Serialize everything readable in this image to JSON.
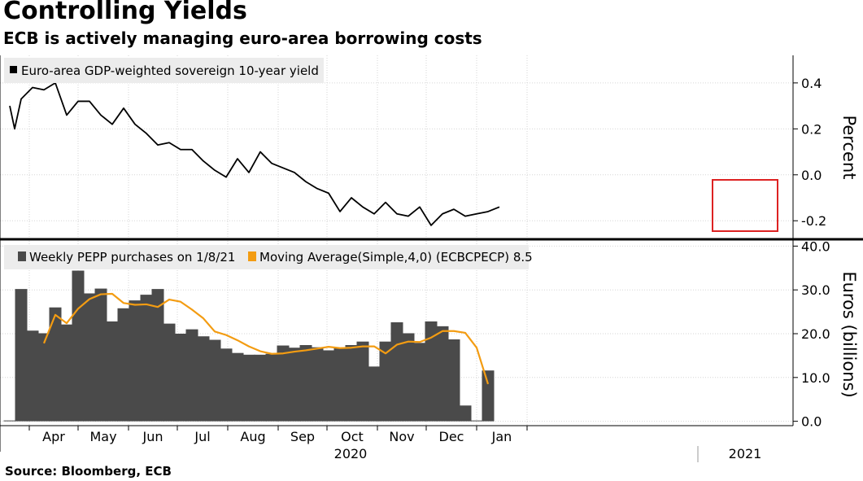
{
  "title": "Controlling Yields",
  "subtitle": "ECB is actively managing euro-area borrowing costs",
  "source": "Source: Bloomberg, ECB",
  "x_axis": {
    "months": [
      "Apr",
      "May",
      "Jun",
      "Jul",
      "Aug",
      "Sep",
      "Oct",
      "Nov",
      "Dec",
      "Jan"
    ],
    "year_2020": "2020",
    "year_2021": "2021"
  },
  "chart_data": [
    {
      "type": "line",
      "legend": "Euro-area GDP-weighted sovereign 10-year yield",
      "ylabel": "Percent",
      "ylim": [
        -0.27,
        0.52
      ],
      "yticks": [
        0.4,
        0.2,
        0.0,
        -0.2
      ],
      "ytick_labels": [
        "0.4",
        "0.2",
        "0.0",
        "-0.2"
      ],
      "grid": true,
      "legend_position": "top-left",
      "color": "#000000",
      "highlight_box": "most recent readings",
      "highlight_color": "#dd2222",
      "series": [
        {
          "x": [
            "2020-03-20",
            "2020-03-23",
            "2020-03-27",
            "2020-04-03",
            "2020-04-10",
            "2020-04-17",
            "2020-04-24",
            "2020-05-01",
            "2020-05-08",
            "2020-05-15",
            "2020-05-22",
            "2020-05-29",
            "2020-06-05",
            "2020-06-12",
            "2020-06-19",
            "2020-06-26",
            "2020-07-03",
            "2020-07-10",
            "2020-07-17",
            "2020-07-24",
            "2020-07-31",
            "2020-08-07",
            "2020-08-14",
            "2020-08-21",
            "2020-08-28",
            "2020-09-04",
            "2020-09-11",
            "2020-09-18",
            "2020-09-25",
            "2020-10-02",
            "2020-10-09",
            "2020-10-16",
            "2020-10-23",
            "2020-10-30",
            "2020-11-06",
            "2020-11-13",
            "2020-11-20",
            "2020-11-27",
            "2020-12-04",
            "2020-12-11",
            "2020-12-18",
            "2020-12-25",
            "2021-01-01",
            "2021-01-08",
            "2021-01-15"
          ],
          "values": [
            0.3,
            0.2,
            0.33,
            0.38,
            0.37,
            0.4,
            0.26,
            0.32,
            0.32,
            0.26,
            0.22,
            0.29,
            0.22,
            0.18,
            0.13,
            0.14,
            0.11,
            0.11,
            0.06,
            0.02,
            -0.01,
            0.07,
            0.01,
            0.1,
            0.05,
            0.03,
            0.01,
            -0.03,
            -0.06,
            -0.08,
            -0.16,
            -0.1,
            -0.14,
            -0.17,
            -0.12,
            -0.17,
            -0.18,
            -0.14,
            -0.22,
            -0.17,
            -0.15,
            -0.18,
            -0.17,
            -0.16,
            -0.14
          ]
        }
      ]
    },
    {
      "type": "bar",
      "legend": "Weekly PEPP purchases on 1/8/21",
      "ylabel": "Euros (billions)",
      "ylim": [
        -1,
        41
      ],
      "yticks": [
        40,
        30,
        20,
        10,
        0
      ],
      "ytick_labels": [
        "40.0",
        "30.0",
        "20.0",
        "10.0",
        "0.0"
      ],
      "grid": true,
      "legend_position": "top-left",
      "series": [
        {
          "name": "Weekly PEPP purchases on 1/8/21",
          "type": "bar",
          "color": "#4a4a4a",
          "x": [
            "2020-03-20",
            "2020-03-27",
            "2020-04-03",
            "2020-04-10",
            "2020-04-17",
            "2020-04-24",
            "2020-05-01",
            "2020-05-08",
            "2020-05-15",
            "2020-05-22",
            "2020-05-29",
            "2020-06-05",
            "2020-06-12",
            "2020-06-19",
            "2020-06-26",
            "2020-07-03",
            "2020-07-10",
            "2020-07-17",
            "2020-07-24",
            "2020-07-31",
            "2020-08-07",
            "2020-08-14",
            "2020-08-21",
            "2020-08-28",
            "2020-09-04",
            "2020-09-11",
            "2020-09-18",
            "2020-09-25",
            "2020-10-02",
            "2020-10-09",
            "2020-10-16",
            "2020-10-23",
            "2020-10-30",
            "2020-11-06",
            "2020-11-13",
            "2020-11-20",
            "2020-11-27",
            "2020-12-04",
            "2020-12-11",
            "2020-12-18",
            "2020-12-25",
            "2021-01-01",
            "2021-01-08"
          ],
          "values": [
            0.0,
            30.2,
            20.7,
            20.1,
            26.0,
            22.1,
            34.4,
            29.2,
            30.3,
            22.8,
            25.8,
            27.6,
            28.9,
            30.2,
            22.3,
            20.0,
            21.0,
            19.4,
            18.6,
            16.6,
            15.6,
            15.2,
            15.2,
            15.4,
            17.3,
            16.8,
            17.4,
            16.9,
            16.2,
            16.7,
            17.4,
            18.2,
            12.5,
            18.2,
            22.6,
            20.1,
            17.9,
            22.8,
            21.7,
            18.7,
            3.6,
            0.0,
            11.6
          ]
        },
        {
          "name": "Moving Average(Simple,4,0) (ECBCPECP)",
          "label_value": "8.5",
          "type": "line",
          "color": "#f39c12",
          "x": [
            "2020-04-10",
            "2020-04-17",
            "2020-04-24",
            "2020-05-01",
            "2020-05-08",
            "2020-05-15",
            "2020-05-22",
            "2020-05-29",
            "2020-06-05",
            "2020-06-12",
            "2020-06-19",
            "2020-06-26",
            "2020-07-03",
            "2020-07-10",
            "2020-07-17",
            "2020-07-24",
            "2020-07-31",
            "2020-08-07",
            "2020-08-14",
            "2020-08-21",
            "2020-08-28",
            "2020-09-04",
            "2020-09-11",
            "2020-09-18",
            "2020-09-25",
            "2020-10-02",
            "2020-10-09",
            "2020-10-16",
            "2020-10-23",
            "2020-10-30",
            "2020-11-06",
            "2020-11-13",
            "2020-11-20",
            "2020-11-27",
            "2020-12-04",
            "2020-12-11",
            "2020-12-18",
            "2020-12-25",
            "2021-01-01",
            "2021-01-08"
          ],
          "values": [
            17.8,
            24.3,
            22.4,
            25.7,
            27.9,
            29.0,
            29.1,
            27.0,
            26.6,
            26.7,
            26.1,
            27.8,
            27.3,
            25.5,
            23.5,
            20.5,
            19.7,
            18.5,
            17.1,
            16.0,
            15.4,
            15.5,
            15.9,
            16.2,
            16.6,
            17.0,
            16.7,
            16.8,
            17.1,
            17.1,
            15.5,
            17.5,
            18.2,
            18.1,
            19.1,
            20.6,
            20.6,
            20.2,
            16.8,
            8.5
          ]
        }
      ]
    }
  ]
}
